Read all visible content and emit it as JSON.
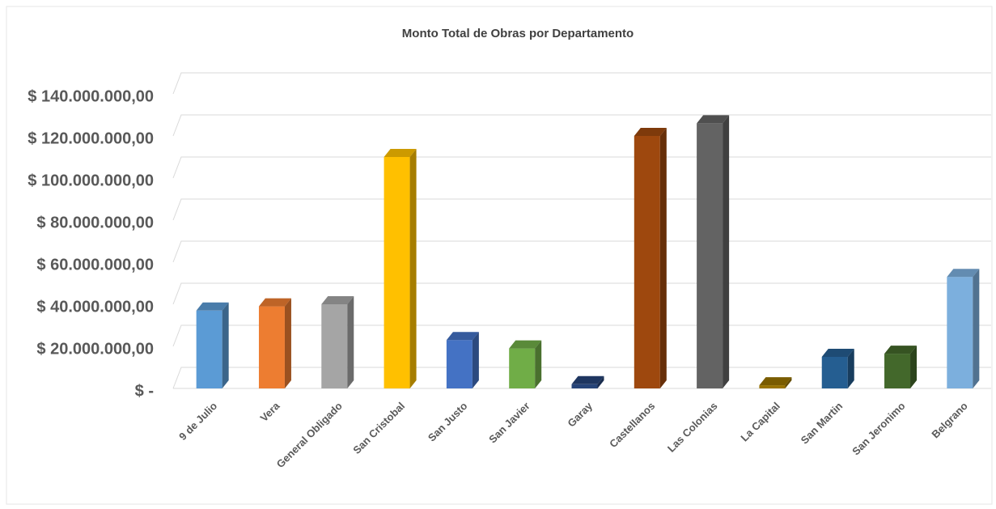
{
  "chart_data": {
    "type": "bar",
    "title": "Monto Total de Obras por Departamento",
    "categories": [
      "9 de Julio",
      "Vera",
      "General Obligado",
      "San Cristobal",
      "San Justo",
      "San Javier",
      "Garay",
      "Castellanos",
      "Las Colonias",
      "La Capital",
      "San Martin",
      "San Jeronimo",
      "Belgrano"
    ],
    "values": [
      37000000,
      39000000,
      40000000,
      110000000,
      23000000,
      19000000,
      2000000,
      120000000,
      126000000,
      1500000,
      15000000,
      16500000,
      53000000
    ],
    "colors": [
      "#5b9bd5",
      "#ed7d31",
      "#a5a5a5",
      "#ffc000",
      "#4472c4",
      "#70ad47",
      "#264478",
      "#9e480e",
      "#636363",
      "#997300",
      "#255e91",
      "#43682b",
      "#7cafdd"
    ],
    "ylim": [
      0,
      150000000
    ],
    "yticks": [
      {
        "value": 0,
        "label": "$ -"
      },
      {
        "value": 20000000,
        "label": "$ 20.000.000,00"
      },
      {
        "value": 40000000,
        "label": "$ 40.000.000,00"
      },
      {
        "value": 60000000,
        "label": "$ 60.000.000,00"
      },
      {
        "value": 80000000,
        "label": "$ 80.000.000,00"
      },
      {
        "value": 100000000,
        "label": "$ 100.000.000,00"
      },
      {
        "value": 120000000,
        "label": "$ 120.000.000,00"
      },
      {
        "value": 140000000,
        "label": "$ 140.000.000,00"
      }
    ],
    "grid": true
  }
}
